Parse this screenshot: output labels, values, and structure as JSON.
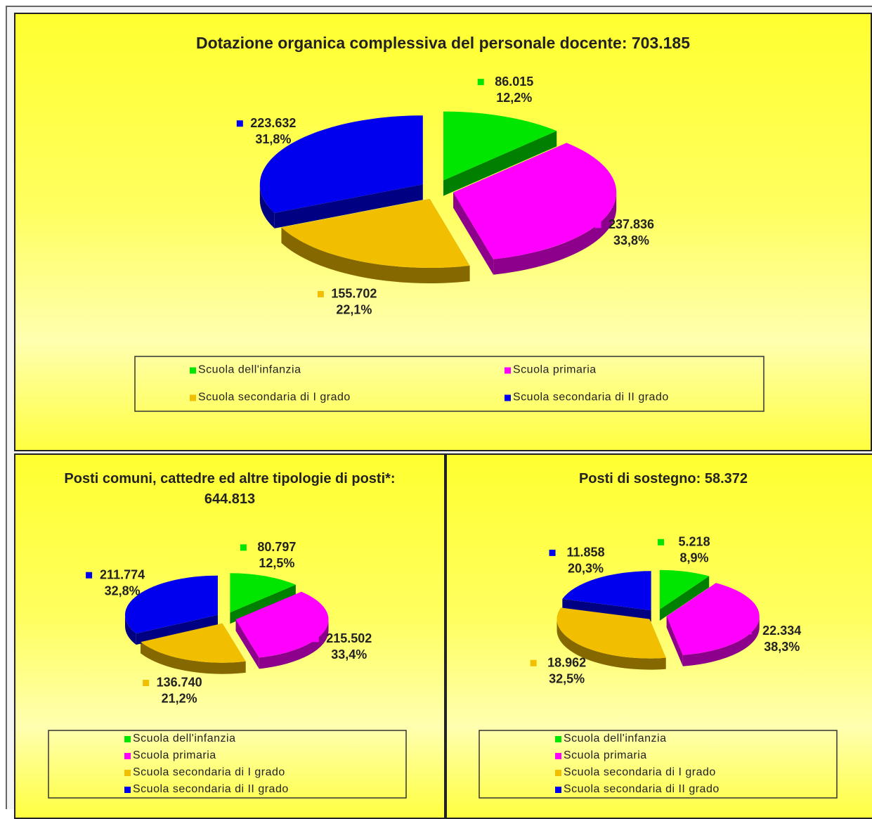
{
  "chart_data": [
    {
      "type": "pie",
      "title": "Dotazione organica complessiva del personale docente: 703.185",
      "categories": [
        "Scuola dell'infanzia",
        "Scuola primaria",
        "Scuola secondaria di I grado",
        "Scuola secondaria di II grado"
      ],
      "values": [
        86015,
        237836,
        155702,
        223632
      ],
      "value_labels": [
        "86.015",
        "237.836",
        "155.702",
        "223.632"
      ],
      "percent_labels": [
        "12,2%",
        "33,8%",
        "22,1%",
        "31,8%"
      ],
      "colors": [
        "#00e600",
        "#ff00ff",
        "#f2bf00",
        "#0000ee"
      ],
      "legend": "bottom"
    },
    {
      "type": "pie",
      "title": "Posti comuni, cattedre ed altre tipologie di posti*: 644.813",
      "categories": [
        "Scuola dell'infanzia",
        "Scuola primaria",
        "Scuola secondaria di I grado",
        "Scuola secondaria di II grado"
      ],
      "values": [
        80797,
        215502,
        136740,
        211774
      ],
      "value_labels": [
        "80.797",
        "215.502",
        "136.740",
        "211.774"
      ],
      "percent_labels": [
        "12,5%",
        "33,4%",
        "21,2%",
        "32,8%"
      ],
      "colors": [
        "#00e600",
        "#ff00ff",
        "#f2bf00",
        "#0000ee"
      ],
      "legend": "bottom"
    },
    {
      "type": "pie",
      "title": "Posti di sostegno: 58.372",
      "categories": [
        "Scuola dell'infanzia",
        "Scuola primaria",
        "Scuola secondaria di I grado",
        "Scuola secondaria di II grado"
      ],
      "values": [
        5218,
        22334,
        18962,
        11858
      ],
      "value_labels": [
        "5.218",
        "22.334",
        "18.962",
        "11.858"
      ],
      "percent_labels": [
        "8,9%",
        "38,3%",
        "32,5%",
        "20,3%"
      ],
      "colors": [
        "#00e600",
        "#ff00ff",
        "#f2bf00",
        "#0000ee"
      ],
      "legend": "bottom"
    }
  ]
}
